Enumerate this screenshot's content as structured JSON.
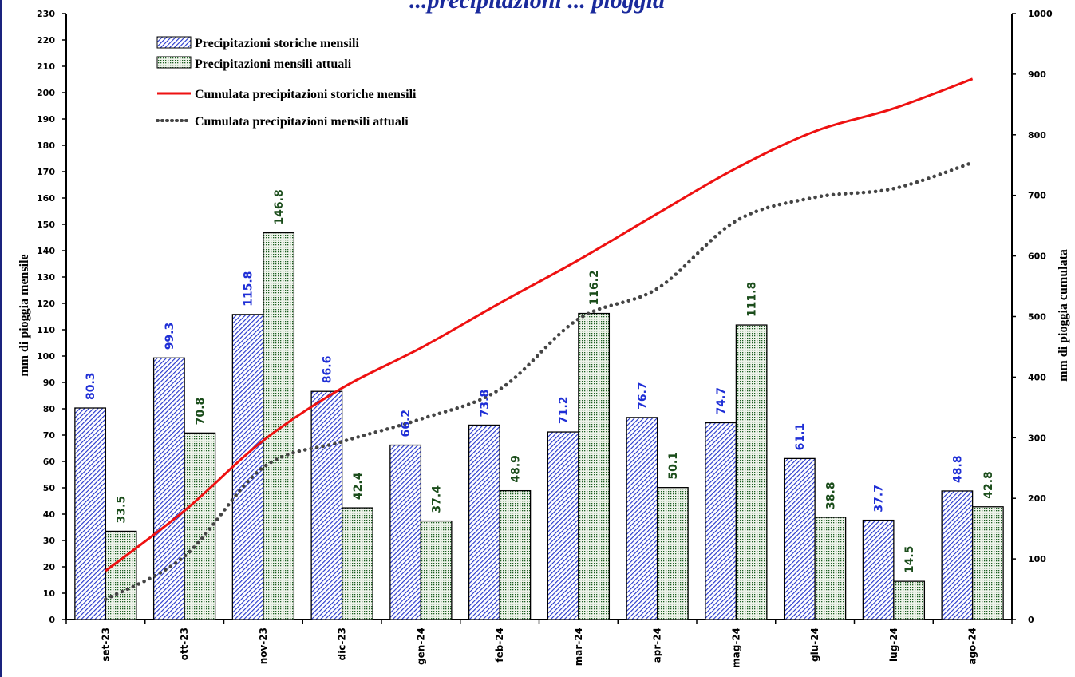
{
  "chart_data": {
    "type": "bar",
    "title": "...precipitazioni ... pioggia",
    "categories": [
      "set-23",
      "ott-23",
      "nov-23",
      "dic-23",
      "gen-24",
      "feb-24",
      "mar-24",
      "apr-24",
      "mag-24",
      "giu-24",
      "lug-24",
      "ago-24"
    ],
    "series": [
      {
        "name": "Precipitazioni storiche mensili",
        "kind": "bar",
        "axis": "left",
        "color": "#2233cc",
        "label_color": "#1f2fd6",
        "values": [
          80.3,
          99.3,
          115.8,
          86.6,
          66.2,
          73.8,
          71.2,
          76.7,
          74.7,
          61.1,
          37.7,
          48.8
        ]
      },
      {
        "name": "Precipitazioni mensili attuali",
        "kind": "bar",
        "axis": "left",
        "color": "#1b5e20",
        "label_color": "#1b4d1b",
        "values": [
          33.5,
          70.8,
          146.8,
          42.4,
          37.4,
          48.9,
          116.2,
          50.1,
          111.8,
          38.8,
          14.5,
          42.8
        ]
      },
      {
        "name": "Cumulata precipitazioni storiche mensili",
        "kind": "line",
        "axis": "right",
        "color": "#ee1111",
        "values": [
          80.3,
          179.6,
          295.4,
          382.0,
          448.2,
          522.0,
          593.2,
          669.9,
          744.6,
          805.7,
          843.4,
          892.2
        ]
      },
      {
        "name": "Cumulata precipitazioni mensili attuali",
        "kind": "line",
        "axis": "right",
        "color": "#444444",
        "dashed": true,
        "values": [
          33.5,
          104.3,
          251.1,
          293.5,
          330.9,
          379.8,
          496.0,
          546.1,
          657.9,
          696.7,
          711.2,
          754.0
        ]
      }
    ],
    "ylabel": "mm di pioggia mensile",
    "y2label": "mm di pioggia cumulata",
    "ylim": [
      0,
      230
    ],
    "yticks": [
      0,
      10,
      20,
      30,
      40,
      50,
      60,
      70,
      80,
      90,
      100,
      110,
      120,
      130,
      140,
      150,
      160,
      170,
      180,
      190,
      200,
      210,
      220,
      230
    ],
    "y2lim": [
      0,
      1000
    ],
    "y2ticks": [
      0,
      100,
      200,
      300,
      400,
      500,
      600,
      700,
      800,
      900,
      1000
    ],
    "legend_position": "top-left",
    "grid": false
  }
}
